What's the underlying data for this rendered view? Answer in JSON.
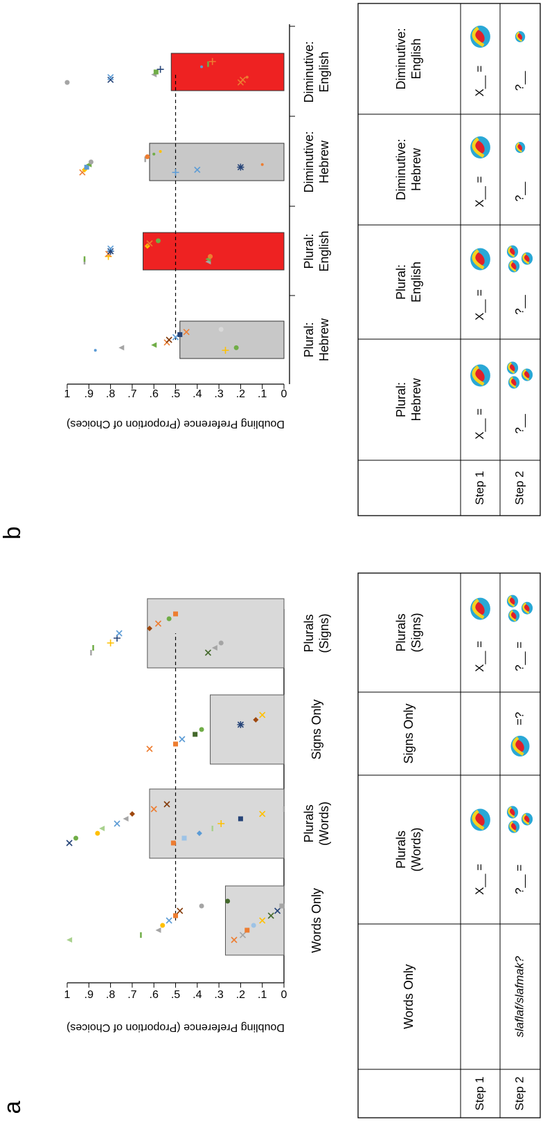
{
  "chart_data": [
    {
      "type": "bar",
      "panel_label": "a",
      "title": "Doubling Preference (Proportion of Choices)",
      "categories": [
        "Words Only",
        "Plurals\n(Words)",
        "Signs Only",
        "Plurals\n(Signs)"
      ],
      "values": [
        0.27,
        0.62,
        0.34,
        0.63
      ],
      "bar_colors": [
        "#d9d9d9",
        "#d9d9d9",
        "#d9d9d9",
        "#d9d9d9"
      ],
      "reference_line": 0.5,
      "ylim": [
        0,
        1
      ],
      "yticks": [
        0,
        {
          "value": 0.1,
          "label": ".1"
        },
        {
          "value": 0.2,
          "label": ".2"
        },
        {
          "value": 0.3,
          "label": ".3"
        },
        {
          "value": 0.4,
          "label": ".4"
        },
        {
          "value": 0.5,
          "label": ".5"
        },
        {
          "value": 0.6,
          "label": ".6"
        },
        {
          "value": 0.7,
          "label": ".7"
        },
        {
          "value": 0.8,
          "label": ".8"
        },
        {
          "value": 0.9,
          "label": ".9"
        },
        1
      ],
      "points": [
        [
          {
            "value": 0.99,
            "marker": "triangle",
            "color": "#a9d18e"
          },
          {
            "value": 0.66,
            "marker": "dash",
            "color": "#70ad47"
          },
          {
            "value": 0.58,
            "marker": "triangle",
            "color": "#a5a5a5"
          },
          {
            "value": 0.56,
            "marker": "circle",
            "color": "#ffc000"
          },
          {
            "value": 0.53,
            "marker": "x",
            "color": "#5b9bd5"
          },
          {
            "value": 0.5,
            "marker": "square",
            "color": "#ed7d31"
          },
          {
            "value": 0.48,
            "marker": "x",
            "color": "#843c0c"
          },
          {
            "value": 0.38,
            "marker": "circle",
            "color": "#a5a5a5"
          },
          {
            "value": 0.26,
            "marker": "circle",
            "color": "#43682b"
          },
          {
            "value": 0.23,
            "marker": "x",
            "color": "#ed7d31"
          },
          {
            "value": 0.19,
            "marker": "x",
            "color": "#a5a5a5"
          },
          {
            "value": 0.17,
            "marker": "square",
            "color": "#ed7d31"
          },
          {
            "value": 0.14,
            "marker": "circle",
            "color": "#9dc3e6"
          },
          {
            "value": 0.1,
            "marker": "x",
            "color": "#ffc000"
          },
          {
            "value": 0.06,
            "marker": "x",
            "color": "#43682b"
          },
          {
            "value": 0.03,
            "marker": "x",
            "color": "#264478"
          },
          {
            "value": 0.01,
            "marker": "square",
            "color": "#a5a5a5"
          }
        ],
        [
          {
            "value": 0.99,
            "marker": "x",
            "color": "#264478"
          },
          {
            "value": 0.96,
            "marker": "circle",
            "color": "#70ad47"
          },
          {
            "value": 0.86,
            "marker": "circle",
            "color": "#ffc000"
          },
          {
            "value": 0.84,
            "marker": "triangle",
            "color": "#a9d18e"
          },
          {
            "value": 0.77,
            "marker": "x",
            "color": "#5b9bd5"
          },
          {
            "value": 0.73,
            "marker": "triangle",
            "color": "#a5a5a5"
          },
          {
            "value": 0.7,
            "marker": "diamond",
            "color": "#9e480e"
          },
          {
            "value": 0.6,
            "marker": "x",
            "color": "#ed7d31"
          },
          {
            "value": 0.54,
            "marker": "x",
            "color": "#843c0c"
          },
          {
            "value": 0.51,
            "marker": "square",
            "color": "#ed7d31"
          },
          {
            "value": 0.46,
            "marker": "square",
            "color": "#9dc3e6"
          },
          {
            "value": 0.39,
            "marker": "diamond",
            "color": "#5b9bd5"
          },
          {
            "value": 0.33,
            "marker": "dash",
            "color": "#a9d18e"
          },
          {
            "value": 0.29,
            "marker": "plus",
            "color": "#ffc000"
          },
          {
            "value": 0.2,
            "marker": "square",
            "color": "#264478"
          },
          {
            "value": 0.1,
            "marker": "x",
            "color": "#ffc000"
          },
          {
            "value": 0,
            "marker": "dash",
            "color": "#a5a5a5"
          }
        ],
        [
          {
            "value": 0.62,
            "marker": "x",
            "color": "#ed7d31"
          },
          {
            "value": 0.5,
            "marker": "square",
            "color": "#ed7d31"
          },
          {
            "value": 0.47,
            "marker": "x",
            "color": "#5b9bd5"
          },
          {
            "value": 0.41,
            "marker": "square",
            "color": "#43682b"
          },
          {
            "value": 0.38,
            "marker": "circle",
            "color": "#70ad47"
          },
          {
            "value": 0.2,
            "marker": "star",
            "color": "#264478"
          },
          {
            "value": 0.13,
            "marker": "diamond",
            "color": "#9e480e"
          },
          {
            "value": 0.1,
            "marker": "x",
            "color": "#ffc000"
          }
        ],
        [
          {
            "value": 0.89,
            "marker": "dash",
            "color": "#a5a5a5"
          },
          {
            "value": 0.88,
            "marker": "dash",
            "color": "#70ad47"
          },
          {
            "value": 0.8,
            "marker": "plus",
            "color": "#ffc000"
          },
          {
            "value": 0.77,
            "marker": "plus",
            "color": "#264478"
          },
          {
            "value": 0.76,
            "marker": "x",
            "color": "#5b9bd5"
          },
          {
            "value": 0.62,
            "marker": "diamond",
            "color": "#9e480e"
          },
          {
            "value": 0.58,
            "marker": "x",
            "color": "#ed7d31"
          },
          {
            "value": 0.53,
            "marker": "circle",
            "color": "#70ad47"
          },
          {
            "value": 0.5,
            "marker": "square",
            "color": "#ed7d31"
          },
          {
            "value": 0.35,
            "marker": "x",
            "color": "#43682b"
          },
          {
            "value": 0.32,
            "marker": "triangle",
            "color": "#a5a5a5"
          },
          {
            "value": 0.29,
            "marker": "circle",
            "color": "#a5a5a5"
          }
        ]
      ]
    },
    {
      "type": "bar",
      "panel_label": "b",
      "title": "Doubling Preference (Proportion of Choices)",
      "categories": [
        "Plural:\nHebrew",
        "Plural:\nEnglish",
        "Diminutive:\nHebrew",
        "Diminutive:\nEnglish"
      ],
      "values": [
        0.48,
        0.65,
        0.62,
        0.52
      ],
      "bar_colors": [
        "#c8c8c8",
        "#ee2222",
        "#c8c8c8",
        "#ee2222"
      ],
      "reference_line": 0.5,
      "ylim": [
        0,
        1
      ],
      "yticks": [
        0,
        {
          "value": 0.1,
          "label": ".1"
        },
        {
          "value": 0.2,
          "label": ".2"
        },
        {
          "value": 0.3,
          "label": ".3"
        },
        {
          "value": 0.4,
          "label": ".4"
        },
        {
          "value": 0.5,
          "label": ".5"
        },
        {
          "value": 0.6,
          "label": ".6"
        },
        {
          "value": 0.7,
          "label": ".7"
        },
        {
          "value": 0.8,
          "label": ".8"
        },
        {
          "value": 0.9,
          "label": ".9"
        },
        1
      ],
      "points": [
        [
          {
            "value": 0.87,
            "marker": "dot",
            "color": "#5b9bd5"
          },
          {
            "value": 0.75,
            "marker": "triangle",
            "color": "#a5a5a5"
          },
          {
            "value": 0.6,
            "marker": "triangle",
            "color": "#70ad47"
          },
          {
            "value": 0.54,
            "marker": "x",
            "color": "#ed7d31"
          },
          {
            "value": 0.53,
            "marker": "x",
            "color": "#843c0c"
          },
          {
            "value": 0.5,
            "marker": "x",
            "color": "#5b9bd5"
          },
          {
            "value": 0.48,
            "marker": "square",
            "color": "#264478"
          },
          {
            "value": 0.45,
            "marker": "x",
            "color": "#ed7d31"
          },
          {
            "value": 0.29,
            "marker": "circle",
            "color": "#d9d9d9"
          },
          {
            "value": 0.27,
            "marker": "plus",
            "color": "#ffc000"
          },
          {
            "value": 0.22,
            "marker": "circle",
            "color": "#70ad47"
          }
        ],
        [
          {
            "value": 0.92,
            "marker": "dash",
            "color": "#a5a5a5"
          },
          {
            "value": 0.92,
            "marker": "dash",
            "color": "#70ad47"
          },
          {
            "value": 0.81,
            "marker": "plus",
            "color": "#ffc000"
          },
          {
            "value": 0.81,
            "marker": "x",
            "color": "#ed7d31"
          },
          {
            "value": 0.8,
            "marker": "star",
            "color": "#264478"
          },
          {
            "value": 0.8,
            "marker": "x",
            "color": "#5b9bd5"
          },
          {
            "value": 0.63,
            "marker": "diamond",
            "color": "#ffc000"
          },
          {
            "value": 0.62,
            "marker": "x",
            "color": "#ed7d31"
          },
          {
            "value": 0.58,
            "marker": "circle",
            "color": "#70ad47"
          },
          {
            "value": 0.35,
            "marker": "triangle",
            "color": "#a5a5a5"
          },
          {
            "value": 0.35,
            "marker": "triangle",
            "color": "#70ad47"
          },
          {
            "value": 0.34,
            "marker": "circle",
            "color": "#ed7d31"
          }
        ],
        [
          {
            "value": 0.93,
            "marker": "x",
            "color": "#ed7d31"
          },
          {
            "value": 0.92,
            "marker": "diamond",
            "color": "#ffc000"
          },
          {
            "value": 0.91,
            "marker": "square",
            "color": "#5b9bd5"
          },
          {
            "value": 0.9,
            "marker": "triangle",
            "color": "#70ad47"
          },
          {
            "value": 0.89,
            "marker": "circle",
            "color": "#a5a5a5"
          },
          {
            "value": 0.64,
            "marker": "dash",
            "color": "#a5a5a5"
          },
          {
            "value": 0.63,
            "marker": "circle",
            "color": "#ed7d31"
          },
          {
            "value": 0.6,
            "marker": "dot",
            "color": "#70ad47"
          },
          {
            "value": 0.57,
            "marker": "dot",
            "color": "#ffc000"
          },
          {
            "value": 0.5,
            "marker": "plus",
            "color": "#5b9bd5"
          },
          {
            "value": 0.4,
            "marker": "x",
            "color": "#5b9bd5"
          },
          {
            "value": 0.2,
            "marker": "star",
            "color": "#264478"
          },
          {
            "value": 0.1,
            "marker": "dot",
            "color": "#ed7d31"
          }
        ],
        [
          {
            "value": 1,
            "marker": "circle",
            "color": "#a5a5a5"
          },
          {
            "value": 0.8,
            "marker": "x",
            "color": "#264478"
          },
          {
            "value": 0.8,
            "marker": "x",
            "color": "#5b9bd5"
          },
          {
            "value": 0.6,
            "marker": "triangle",
            "color": "#a5a5a5"
          },
          {
            "value": 0.59,
            "marker": "square",
            "color": "#70ad47"
          },
          {
            "value": 0.57,
            "marker": "plus",
            "color": "#264478"
          },
          {
            "value": 0.38,
            "marker": "dot",
            "color": "#5b9bd5"
          },
          {
            "value": 0.35,
            "marker": "dash",
            "color": "#70ad47"
          },
          {
            "value": 0.33,
            "marker": "plus",
            "color": "#ed7d31"
          },
          {
            "value": 0.2,
            "marker": "x",
            "color": "#ed7d31"
          },
          {
            "value": 0.19,
            "marker": "x",
            "color": "#ed7d31"
          },
          {
            "value": 0.17,
            "marker": "dot",
            "color": "#ed7d31"
          }
        ]
      ]
    }
  ],
  "tables": [
    {
      "header": [
        "Words Only",
        "Plurals\n(Words)",
        "Signs Only",
        "Plurals\n(Signs)"
      ],
      "rows": [
        {
          "label": "Step 1",
          "cells": [
            null,
            "X__ =",
            null,
            "X__ ="
          ]
        },
        {
          "label": "Step 2",
          "cells": [
            "slaflaf/slafmak?",
            "?__ =",
            "=?",
            "?__ ="
          ]
        }
      ]
    },
    {
      "header": [
        "Plural:\nHebrew",
        "Plural:\nEnglish",
        "Diminutive:\nHebrew",
        "Diminutive:\nEnglish"
      ],
      "rows": [
        {
          "label": "Step 1",
          "cells": [
            "X__ =",
            "X__ =",
            "X__ =",
            "X__ ="
          ]
        },
        {
          "label": "Step 2",
          "cells": [
            "?__",
            "?__",
            "?__",
            "?__"
          ]
        }
      ]
    }
  ]
}
